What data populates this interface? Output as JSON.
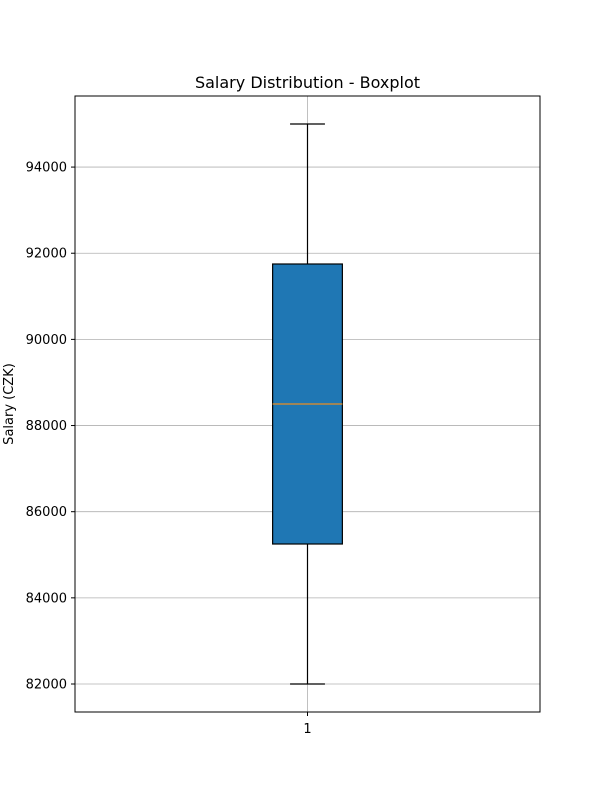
{
  "chart_data": {
    "type": "boxplot",
    "title": "Salary Distribution - Boxplot",
    "xlabel": "",
    "ylabel": "Salary (CZK)",
    "categories": [
      "1"
    ],
    "boxes": [
      {
        "category": "1",
        "whisker_low": 82000,
        "q1": 85250,
        "median": 88500,
        "q3": 91750,
        "whisker_high": 95000
      }
    ],
    "ylim": [
      81350,
      95650
    ],
    "yticks": [
      82000,
      84000,
      86000,
      88000,
      90000,
      92000,
      94000
    ],
    "ytick_labels": [
      "82000",
      "84000",
      "86000",
      "88000",
      "90000",
      "92000",
      "94000"
    ],
    "grid": true,
    "colors": {
      "box_fill": "#1f77b4",
      "median_line": "#c98a3a",
      "grid": "#b0b0b0",
      "axes": "#000000"
    }
  }
}
